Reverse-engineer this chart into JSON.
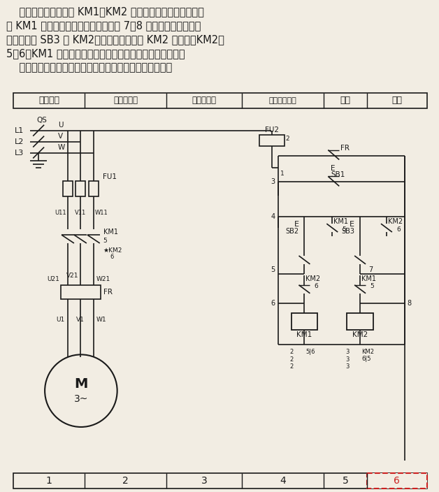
{
  "bg_color": "#f2ede3",
  "line_color": "#1a1a1a",
  "text_color": "#1a1a1a",
  "para1": "    控制电路中，接触器 KM1、KM2 两对常闭触点为联锁触点。",
  "para2": "当 KM1 动作后，其常闭触点打开，将 7、8 之间断开，保证了这",
  "para3": "时如果按下 SB3 时 KM2不能吸合；同理如 KM2 吸合时，KM2断",
  "para4": "5、6，KM1 也不会吸合，所以它能避免主电路的相间短路。",
  "para5": "    用辅助触点作联锁保护的电动机可逆起动控制电路，见图",
  "hdr": [
    "电源开关",
    "电动机正转",
    "电动机反转",
    "控制电路保护",
    "正转",
    "反转"
  ]
}
